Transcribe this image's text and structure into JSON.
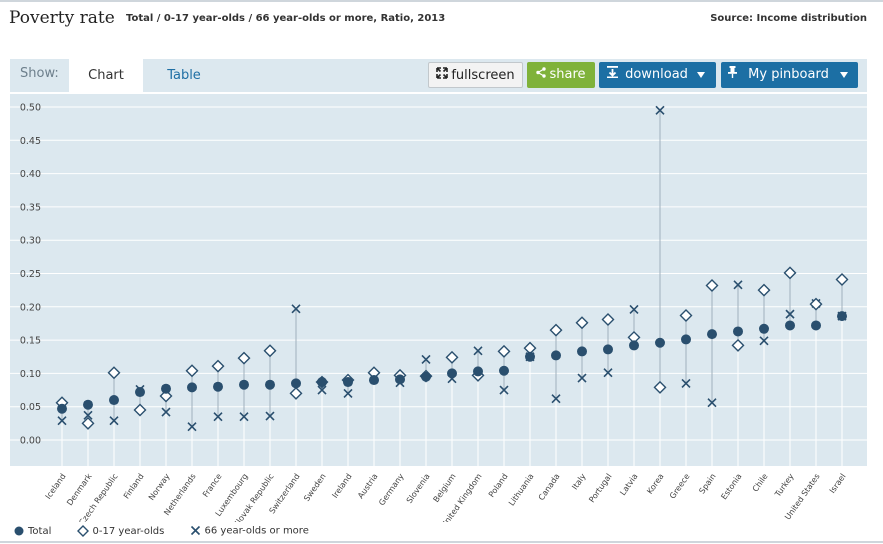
{
  "header": {
    "title": "Poverty rate",
    "subtitle": "Total / 0-17 year-olds / 66 year-olds or more, Ratio, 2013",
    "source": "Source: Income distribution"
  },
  "toolbar": {
    "show_label": "Show:",
    "tab_chart": "Chart",
    "tab_table": "Table",
    "fullscreen_label": "fullscreen",
    "share_label": "share",
    "download_label": "download",
    "pinboard_label": "My pinboard"
  },
  "colors": {
    "plot_bg": "#dce8ef",
    "marker": "#2a4f6e",
    "button_blue": "#1c6fa4",
    "button_green": "#7fb23a"
  },
  "chart_data": {
    "type": "scatter",
    "ylim": [
      0,
      0.5
    ],
    "yticks": [
      "0.00",
      "0.05",
      "0.10",
      "0.15",
      "0.20",
      "0.25",
      "0.30",
      "0.35",
      "0.40",
      "0.45",
      "0.50"
    ],
    "categories": [
      "Iceland",
      "Denmark",
      "Czech Republic",
      "Finland",
      "Norway",
      "Netherlands",
      "France",
      "Luxembourg",
      "Slovak Republic",
      "Switzerland",
      "Sweden",
      "Ireland",
      "Austria",
      "Germany",
      "Slovenia",
      "Belgium",
      "United Kingdom",
      "Poland",
      "Lithuania",
      "Canada",
      "Italy",
      "Portugal",
      "Latvia",
      "Korea",
      "Greece",
      "Spain",
      "Estonia",
      "Chile",
      "Turkey",
      "United States",
      "Israel"
    ],
    "series": [
      {
        "name": "Total",
        "marker": "circle",
        "values": [
          0.047,
          0.053,
          0.06,
          0.072,
          0.077,
          0.079,
          0.08,
          0.083,
          0.083,
          0.085,
          0.087,
          0.087,
          0.09,
          0.091,
          0.095,
          0.1,
          0.103,
          0.104,
          0.125,
          0.127,
          0.133,
          0.136,
          0.142,
          0.146,
          0.151,
          0.159,
          0.163,
          0.167,
          0.172,
          0.172,
          0.186
        ]
      },
      {
        "name": "0-17 year-olds",
        "marker": "diamond",
        "values": [
          0.056,
          0.025,
          0.101,
          0.045,
          0.066,
          0.104,
          0.111,
          0.123,
          0.134,
          0.07,
          0.087,
          0.09,
          0.101,
          0.097,
          0.096,
          0.124,
          0.097,
          0.133,
          0.138,
          0.165,
          0.176,
          0.181,
          0.154,
          0.079,
          0.187,
          0.232,
          0.142,
          0.225,
          0.251,
          0.204,
          0.241
        ]
      },
      {
        "name": "66 year-olds or more",
        "marker": "cross",
        "values": [
          0.029,
          0.037,
          0.029,
          0.076,
          0.042,
          0.02,
          0.035,
          0.035,
          0.036,
          0.197,
          0.075,
          0.07,
          0.094,
          0.086,
          0.121,
          0.092,
          0.134,
          0.075,
          0.125,
          0.062,
          0.093,
          0.101,
          0.196,
          0.495,
          0.085,
          0.056,
          0.233,
          0.149,
          0.189,
          0.205,
          0.186
        ]
      }
    ]
  }
}
